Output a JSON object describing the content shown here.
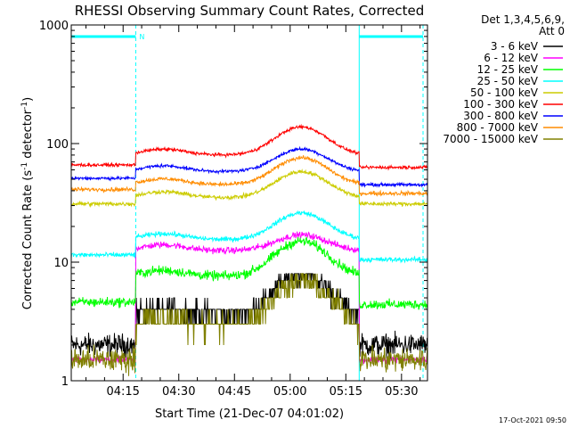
{
  "chart_data": {
    "type": "line",
    "title": "RHESSI Observing Summary Count Rates, Corrected",
    "xlabel": "Start Time (21-Dec-07 04:01:02)",
    "ylabel_main": "Corrected Count Rate (s",
    "ylabel_sup1": "-1",
    "ylabel_mid": " detector",
    "ylabel_sup2": "-1",
    "ylabel_end": ")",
    "y_scale": "log",
    "ylim": [
      1,
      1000
    ],
    "y_ticks": [
      {
        "value": 1,
        "label": "1"
      },
      {
        "value": 10,
        "label": "10"
      },
      {
        "value": 100,
        "label": "100"
      },
      {
        "value": 1000,
        "label": "1000"
      }
    ],
    "x_ticks": [
      "04:15",
      "04:30",
      "04:45",
      "05:00",
      "05:15",
      "05:30"
    ],
    "x_tick_minutes": [
      15,
      30,
      45,
      60,
      75,
      90
    ],
    "xlim_minutes": [
      1.03,
      97.0
    ],
    "legend": {
      "placement": "right",
      "header1": "Det 1,3,4,5,6,9,",
      "header2": "Att 0"
    },
    "annotation_N": "N",
    "night_intervals": [
      [
        1.03,
        18.4
      ],
      [
        78.6,
        95.8
      ]
    ],
    "series": [
      {
        "name": "3 - 6 keV",
        "color": "#000000",
        "base": 3.6,
        "peak": 8.0,
        "pre": 2.0,
        "post": 2.0,
        "noise": 0.14
      },
      {
        "name": "6 - 12 keV",
        "color": "#ff00ff",
        "base": 12.5,
        "peak": 17.0,
        "pre": 1.5,
        "post": 1.5,
        "noise": 0.04
      },
      {
        "name": "12 - 25 keV",
        "color": "#00ff00",
        "base": 7.6,
        "peak": 15.0,
        "pre": 4.6,
        "post": 4.4,
        "noise": 0.06
      },
      {
        "name": "25 - 50 keV",
        "color": "#00ffff",
        "base": 15.5,
        "peak": 26.0,
        "pre": 11.5,
        "post": 10.5,
        "noise": 0.03
      },
      {
        "name": "50 - 100 keV",
        "color": "#cccc00",
        "base": 35.0,
        "peak": 58.0,
        "pre": 31.0,
        "post": 31.0,
        "noise": 0.025
      },
      {
        "name": "100 - 300 keV",
        "color": "#ff0000",
        "base": 80.0,
        "peak": 138.0,
        "pre": 66.0,
        "post": 63.0,
        "noise": 0.02
      },
      {
        "name": "300 - 800 keV",
        "color": "#0000ff",
        "base": 58.0,
        "peak": 90.0,
        "pre": 51.0,
        "post": 45.0,
        "noise": 0.02
      },
      {
        "name": "800 - 7000 keV",
        "color": "#ff8c00",
        "base": 45.0,
        "peak": 76.0,
        "pre": 41.0,
        "post": 38.0,
        "noise": 0.025
      },
      {
        "name": "7000 - 15000 keV",
        "color": "#808000",
        "base": 3.0,
        "peak": 7.0,
        "pre": 1.5,
        "post": 1.5,
        "noise": 0.16
      }
    ]
  },
  "footer_timestamp": "17-Oct-2021 09:50"
}
